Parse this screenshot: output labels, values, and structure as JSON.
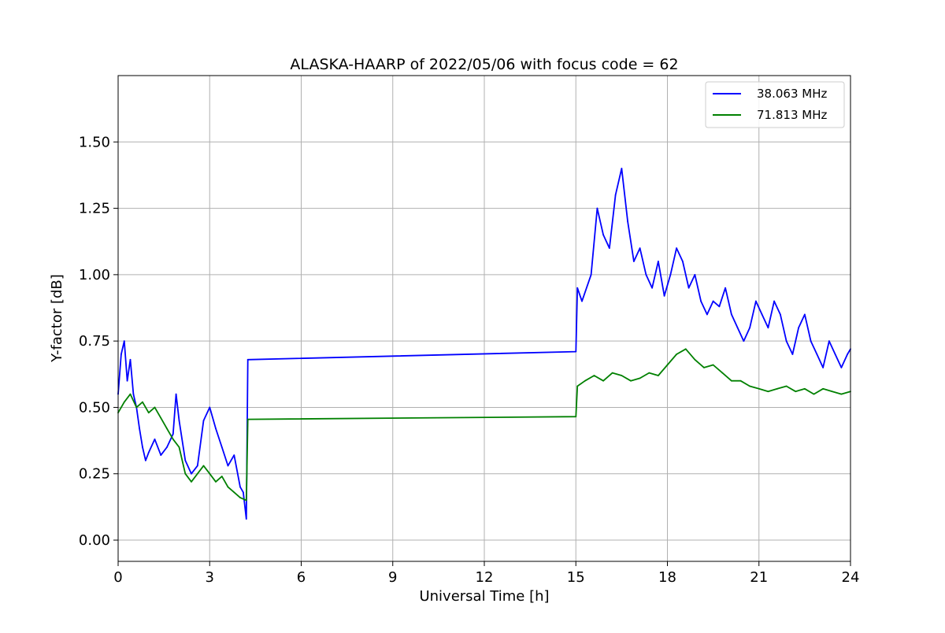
{
  "chart_data": {
    "type": "line",
    "title": "ALASKA-HAARP of 2022/05/06 with focus code = 62",
    "xlabel": "Universal Time [h]",
    "ylabel": "Y-factor [dB]",
    "xlim": [
      0,
      24
    ],
    "ylim": [
      -0.08,
      1.75
    ],
    "xticks": [
      0,
      3,
      6,
      9,
      12,
      15,
      18,
      21,
      24
    ],
    "xtick_labels": [
      "0",
      "3",
      "6",
      "9",
      "12",
      "15",
      "18",
      "21",
      "24"
    ],
    "yticks": [
      0.0,
      0.25,
      0.5,
      0.75,
      1.0,
      1.25,
      1.5
    ],
    "ytick_labels": [
      "0.00",
      "0.25",
      "0.50",
      "0.75",
      "1.00",
      "1.25",
      "1.50"
    ],
    "grid": true,
    "legend_position": "top-right",
    "series": [
      {
        "name": "38.063 MHz",
        "color": "#0000ff",
        "x": [
          0,
          0.1,
          0.2,
          0.3,
          0.4,
          0.5,
          0.6,
          0.7,
          0.8,
          0.9,
          1.0,
          1.2,
          1.4,
          1.6,
          1.8,
          1.9,
          2.0,
          2.2,
          2.4,
          2.6,
          2.8,
          3.0,
          3.2,
          3.4,
          3.6,
          3.8,
          4.0,
          4.1,
          4.2,
          4.25,
          15.0,
          15.05,
          15.2,
          15.5,
          15.7,
          15.9,
          16.1,
          16.3,
          16.5,
          16.7,
          16.9,
          17.1,
          17.3,
          17.5,
          17.7,
          17.9,
          18.1,
          18.3,
          18.5,
          18.7,
          18.9,
          19.1,
          19.3,
          19.5,
          19.7,
          19.9,
          20.1,
          20.3,
          20.5,
          20.7,
          20.9,
          21.1,
          21.3,
          21.5,
          21.7,
          21.9,
          22.1,
          22.3,
          22.5,
          22.7,
          22.9,
          23.1,
          23.3,
          23.5,
          23.7,
          23.9,
          24.0
        ],
        "values": [
          0.55,
          0.7,
          0.75,
          0.6,
          0.68,
          0.55,
          0.5,
          0.42,
          0.35,
          0.3,
          0.33,
          0.38,
          0.32,
          0.35,
          0.4,
          0.55,
          0.45,
          0.3,
          0.25,
          0.28,
          0.45,
          0.5,
          0.42,
          0.35,
          0.28,
          0.32,
          0.2,
          0.18,
          0.08,
          0.68,
          0.71,
          0.95,
          0.9,
          1.0,
          1.25,
          1.15,
          1.1,
          1.3,
          1.4,
          1.2,
          1.05,
          1.1,
          1.0,
          0.95,
          1.05,
          0.92,
          1.0,
          1.1,
          1.05,
          0.95,
          1.0,
          0.9,
          0.85,
          0.9,
          0.88,
          0.95,
          0.85,
          0.8,
          0.75,
          0.8,
          0.9,
          0.85,
          0.8,
          0.9,
          0.85,
          0.75,
          0.7,
          0.8,
          0.85,
          0.75,
          0.7,
          0.65,
          0.75,
          0.7,
          0.65,
          0.7,
          0.72
        ]
      },
      {
        "name": "71.813 MHz",
        "color": "#008000",
        "x": [
          0,
          0.2,
          0.4,
          0.6,
          0.8,
          1.0,
          1.2,
          1.4,
          1.6,
          1.8,
          2.0,
          2.2,
          2.4,
          2.6,
          2.8,
          3.0,
          3.2,
          3.4,
          3.6,
          3.8,
          4.0,
          4.2,
          4.25,
          15.0,
          15.05,
          15.3,
          15.6,
          15.9,
          16.2,
          16.5,
          16.8,
          17.1,
          17.4,
          17.7,
          18.0,
          18.3,
          18.6,
          18.9,
          19.2,
          19.5,
          19.8,
          20.1,
          20.4,
          20.7,
          21.0,
          21.3,
          21.6,
          21.9,
          22.2,
          22.5,
          22.8,
          23.1,
          23.4,
          23.7,
          24.0
        ],
        "values": [
          0.48,
          0.52,
          0.55,
          0.5,
          0.52,
          0.48,
          0.5,
          0.46,
          0.42,
          0.38,
          0.35,
          0.25,
          0.22,
          0.25,
          0.28,
          0.25,
          0.22,
          0.24,
          0.2,
          0.18,
          0.16,
          0.15,
          0.455,
          0.465,
          0.58,
          0.6,
          0.62,
          0.6,
          0.63,
          0.62,
          0.6,
          0.61,
          0.63,
          0.62,
          0.66,
          0.7,
          0.72,
          0.68,
          0.65,
          0.66,
          0.63,
          0.6,
          0.6,
          0.58,
          0.57,
          0.56,
          0.57,
          0.58,
          0.56,
          0.57,
          0.55,
          0.57,
          0.56,
          0.55,
          0.56
        ]
      }
    ]
  }
}
